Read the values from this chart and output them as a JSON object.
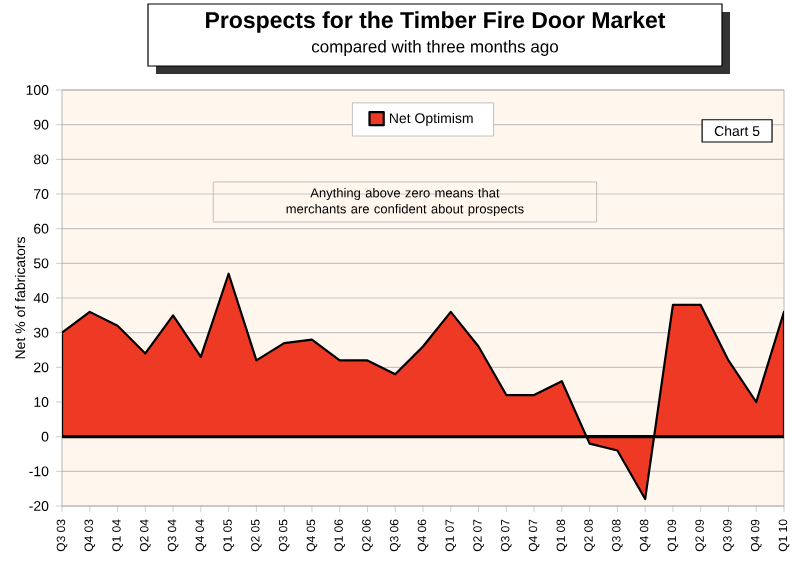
{
  "chart_data": {
    "type": "area",
    "title": "Prospects for the Timber Fire Door Market",
    "subtitle": "compared with three months ago",
    "ylabel": "Net % of fabricators",
    "categories": [
      "Q3 03",
      "Q4 03",
      "Q1 04",
      "Q2 04",
      "Q3 04",
      "Q4 04",
      "Q1 05",
      "Q2 05",
      "Q3 05",
      "Q4 05",
      "Q1 06",
      "Q2 06",
      "Q3 06",
      "Q4 06",
      "Q1 07",
      "Q2 07",
      "Q3 07",
      "Q4 07",
      "Q1 08",
      "Q2 08",
      "Q3 08",
      "Q4 08",
      "Q1 09",
      "Q2 09",
      "Q3 09",
      "Q4 09",
      "Q1 10"
    ],
    "series": [
      {
        "name": "Net  Optimism",
        "color": "#ee3a24",
        "values": [
          30,
          36,
          32,
          24,
          35,
          23,
          47,
          22,
          27,
          28,
          22,
          22,
          18,
          26,
          36,
          26,
          12,
          12,
          16,
          -2,
          -4,
          -18,
          38,
          38,
          22,
          10,
          36
        ]
      }
    ],
    "ylim": [
      -20,
      100
    ],
    "yticks": [
      -20,
      -10,
      0,
      10,
      20,
      30,
      40,
      50,
      60,
      70,
      80,
      90,
      100
    ],
    "grid": "y",
    "legend": "top",
    "ref_lines": [
      {
        "axis": "y",
        "value": 0,
        "color": "#000000"
      }
    ],
    "annotations": [
      "Chart 5",
      "Anything above zero means that merchants are confident about prospects"
    ]
  }
}
